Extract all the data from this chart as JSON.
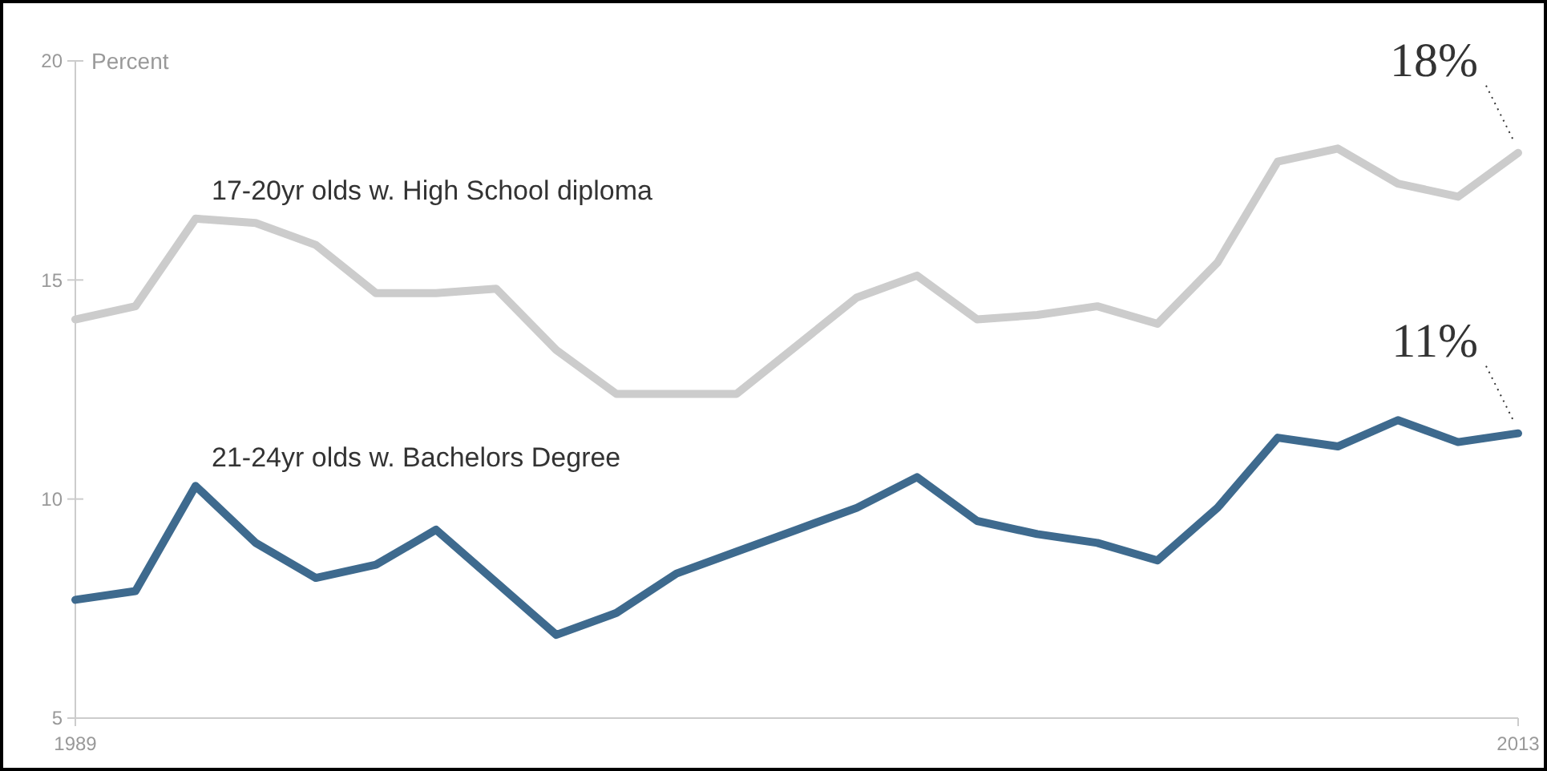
{
  "chart_data": {
    "type": "line",
    "ylabel": "Percent",
    "x": [
      1989,
      1990,
      1991,
      1992,
      1993,
      1994,
      1995,
      1996,
      1997,
      1998,
      1999,
      2000,
      2001,
      2002,
      2003,
      2004,
      2005,
      2006,
      2007,
      2008,
      2009,
      2010,
      2011,
      2012,
      2013
    ],
    "series": [
      {
        "name": "17-20yr olds w. High School diploma",
        "color": "#cccccc",
        "values": [
          14.1,
          14.4,
          16.4,
          16.3,
          15.8,
          14.7,
          14.7,
          14.8,
          13.4,
          12.4,
          12.4,
          12.4,
          13.5,
          14.6,
          15.1,
          14.1,
          14.2,
          14.4,
          14.0,
          15.4,
          17.7,
          18.0,
          17.2,
          16.9,
          17.9
        ]
      },
      {
        "name": "21-24yr olds w. Bachelors Degree",
        "color": "#3e6a8e",
        "values": [
          7.7,
          7.9,
          10.3,
          9.0,
          8.2,
          8.5,
          9.3,
          8.1,
          6.9,
          7.4,
          8.3,
          8.8,
          9.3,
          9.8,
          10.5,
          9.5,
          9.2,
          9.0,
          8.6,
          9.8,
          11.4,
          11.2,
          11.8,
          11.3,
          11.5
        ]
      }
    ],
    "xlim": [
      1989,
      2013
    ],
    "xticks": [
      1989,
      2013
    ],
    "ylim": [
      5,
      20
    ],
    "yticks": [
      5,
      10,
      15,
      20
    ],
    "grid": false,
    "legend": false,
    "marker": "none",
    "line_style": "solid",
    "annotations": [
      {
        "text": "18%",
        "x": 2013,
        "y": 17.9
      },
      {
        "text": "11%",
        "x": 2013,
        "y": 11.5
      }
    ]
  }
}
